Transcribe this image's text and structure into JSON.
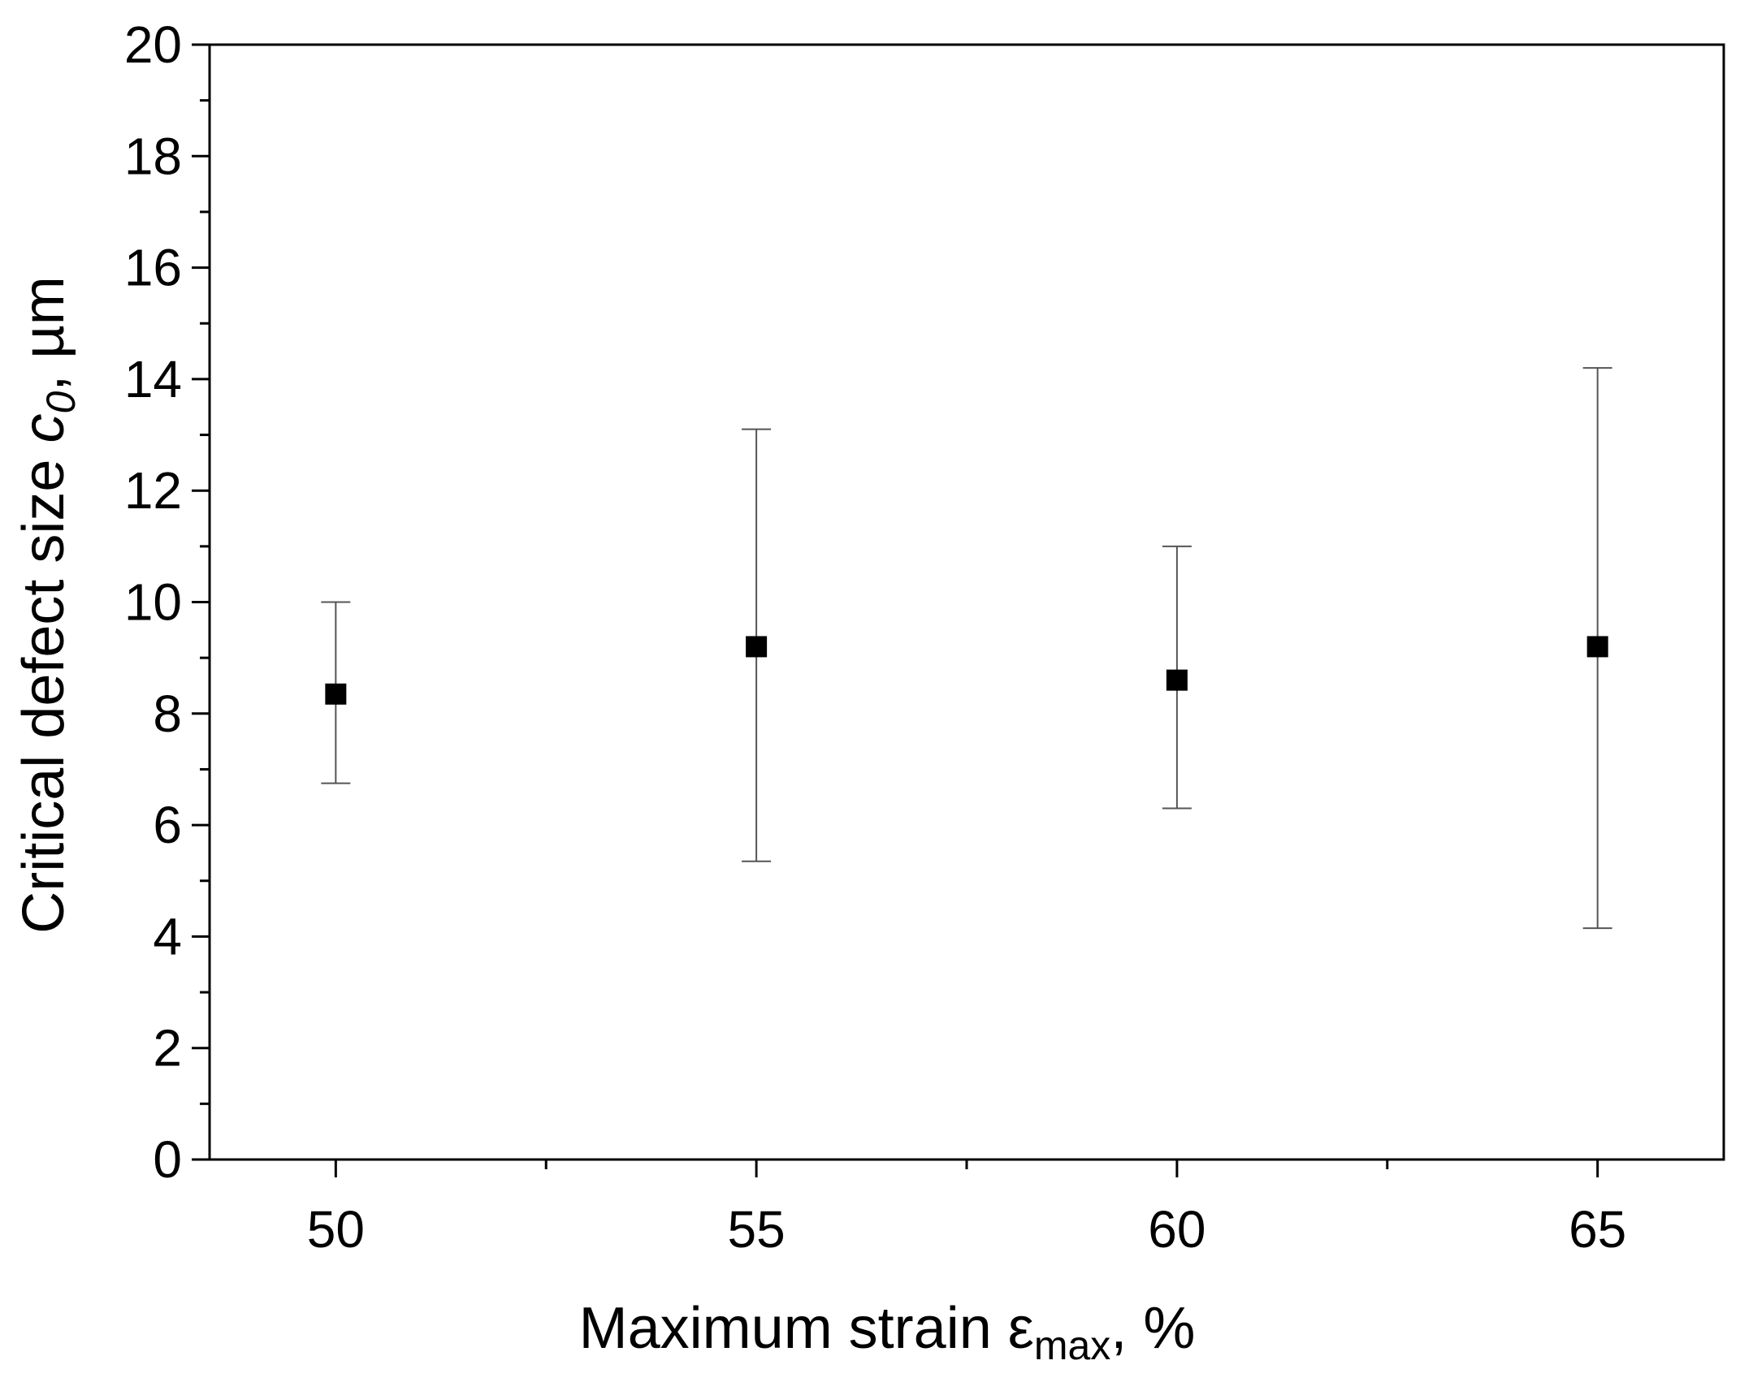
{
  "chart_data": {
    "type": "scatter",
    "xlabel": {
      "main": "Maximum strain ε",
      "subscript": "max",
      "suffix": ", %"
    },
    "ylabel": {
      "main": "Critical defect size ",
      "italic": "c",
      "subscript": "0",
      "suffix": ", µm"
    },
    "xlim": [
      48.5,
      66.5
    ],
    "ylim": [
      0,
      20
    ],
    "x_ticks": [
      50,
      55,
      60,
      65
    ],
    "x_tick_labels": [
      "50",
      "55",
      "60",
      "65"
    ],
    "x_minor_ticks": [
      52.5,
      57.5,
      62.5
    ],
    "y_ticks": [
      0,
      2,
      4,
      6,
      8,
      10,
      12,
      14,
      16,
      18,
      20
    ],
    "y_tick_labels": [
      "0",
      "2",
      "4",
      "6",
      "8",
      "10",
      "12",
      "14",
      "16",
      "18",
      "20"
    ],
    "y_minor_ticks": [
      1,
      3,
      5,
      7,
      9,
      11,
      13,
      15,
      17,
      19
    ],
    "grid": false,
    "marker": "square",
    "marker_color": "#000000",
    "errorbar_color": "#555555",
    "points": [
      {
        "x": 50,
        "y": 8.35,
        "err_low": 6.75,
        "err_high": 10.0
      },
      {
        "x": 55,
        "y": 9.2,
        "err_low": 5.35,
        "err_high": 13.1
      },
      {
        "x": 60,
        "y": 8.6,
        "err_low": 6.3,
        "err_high": 11.0
      },
      {
        "x": 65,
        "y": 9.2,
        "err_low": 4.15,
        "err_high": 14.2
      }
    ]
  }
}
